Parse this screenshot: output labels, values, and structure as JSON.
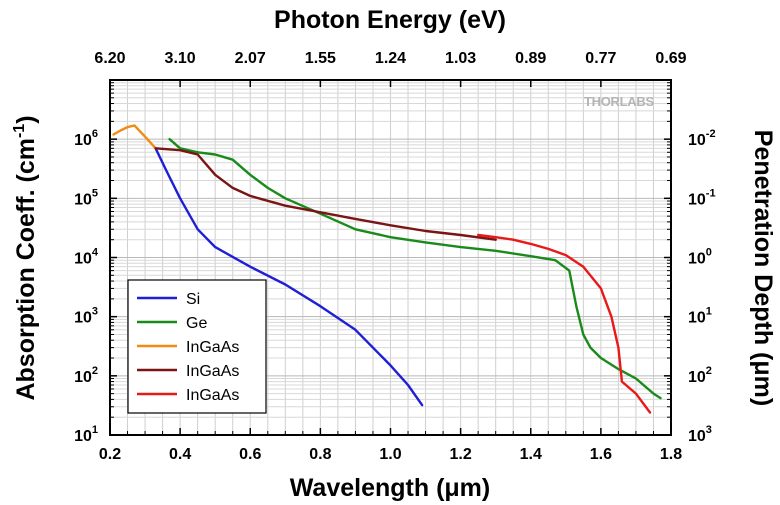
{
  "chart_data": {
    "type": "line",
    "logo": "THORLABS",
    "top_axis": {
      "title": "Photon Energy (eV)",
      "tick_labels": [
        "6.20",
        "3.10",
        "2.07",
        "1.55",
        "1.24",
        "1.03",
        "0.89",
        "0.77",
        "0.69"
      ]
    },
    "x_axis": {
      "title": "Wavelength (μm)",
      "range": [
        0.2,
        1.8
      ],
      "tick_labels": [
        "0.2",
        "0.4",
        "0.6",
        "0.8",
        "1.0",
        "1.2",
        "1.4",
        "1.6",
        "1.8"
      ]
    },
    "y_axis": {
      "title": "Absorption Coeff. (cm",
      "title_superscript": "-1",
      "title_suffix": ")",
      "scale": "log",
      "range": [
        10,
        10000000
      ],
      "tick_base": "10",
      "tick_exponents": [
        "1",
        "2",
        "3",
        "4",
        "5",
        "6"
      ]
    },
    "y2_axis": {
      "title": "Penetration Depth (μm)",
      "tick_base": "10",
      "tick_exponents": [
        "3",
        "2",
        "1",
        "0",
        "-1",
        "-2"
      ]
    },
    "grid": true,
    "legend": {
      "position": "bottom-left"
    },
    "series": [
      {
        "name": "Si",
        "color": "#1f1fd6",
        "points": [
          [
            0.33,
            700000
          ],
          [
            0.36,
            300000
          ],
          [
            0.4,
            100000
          ],
          [
            0.45,
            30000
          ],
          [
            0.5,
            15000
          ],
          [
            0.6,
            7000
          ],
          [
            0.7,
            3500
          ],
          [
            0.8,
            1500
          ],
          [
            0.9,
            600
          ],
          [
            1.0,
            150
          ],
          [
            1.05,
            70
          ],
          [
            1.09,
            32
          ]
        ]
      },
      {
        "name": "Ge",
        "color": "#1a8a1a",
        "points": [
          [
            0.37,
            1000000
          ],
          [
            0.4,
            700000
          ],
          [
            0.45,
            600000
          ],
          [
            0.5,
            550000
          ],
          [
            0.55,
            450000
          ],
          [
            0.6,
            250000
          ],
          [
            0.65,
            150000
          ],
          [
            0.7,
            100000
          ],
          [
            0.8,
            55000
          ],
          [
            0.9,
            30000
          ],
          [
            1.0,
            22000
          ],
          [
            1.1,
            18000
          ],
          [
            1.2,
            15000
          ],
          [
            1.3,
            13000
          ],
          [
            1.4,
            10500
          ],
          [
            1.47,
            9000
          ],
          [
            1.51,
            6000
          ],
          [
            1.53,
            1500
          ],
          [
            1.55,
            500
          ],
          [
            1.57,
            300
          ],
          [
            1.6,
            200
          ],
          [
            1.65,
            130
          ],
          [
            1.7,
            90
          ],
          [
            1.75,
            50
          ],
          [
            1.77,
            42
          ]
        ]
      },
      {
        "name": "InGaAs",
        "color": "#f08c14",
        "points": [
          [
            0.21,
            1200000
          ],
          [
            0.23,
            1400000
          ],
          [
            0.25,
            1600000
          ],
          [
            0.27,
            1700000
          ],
          [
            0.3,
            1100000
          ],
          [
            0.33,
            700000
          ]
        ]
      },
      {
        "name": "InGaAs",
        "color": "#7a1515",
        "points": [
          [
            0.33,
            700000
          ],
          [
            0.4,
            650000
          ],
          [
            0.45,
            550000
          ],
          [
            0.5,
            250000
          ],
          [
            0.55,
            150000
          ],
          [
            0.6,
            110000
          ],
          [
            0.7,
            75000
          ],
          [
            0.8,
            58000
          ],
          [
            0.9,
            45000
          ],
          [
            1.0,
            35000
          ],
          [
            1.1,
            28000
          ],
          [
            1.2,
            24000
          ],
          [
            1.3,
            20000
          ]
        ]
      },
      {
        "name": "InGaAs",
        "color": "#e81919",
        "points": [
          [
            1.25,
            24000
          ],
          [
            1.3,
            22000
          ],
          [
            1.35,
            20000
          ],
          [
            1.4,
            17000
          ],
          [
            1.45,
            14000
          ],
          [
            1.5,
            11000
          ],
          [
            1.55,
            7000
          ],
          [
            1.6,
            3000
          ],
          [
            1.63,
            1000
          ],
          [
            1.65,
            300
          ],
          [
            1.66,
            80
          ],
          [
            1.7,
            50
          ],
          [
            1.74,
            24
          ]
        ]
      }
    ]
  }
}
